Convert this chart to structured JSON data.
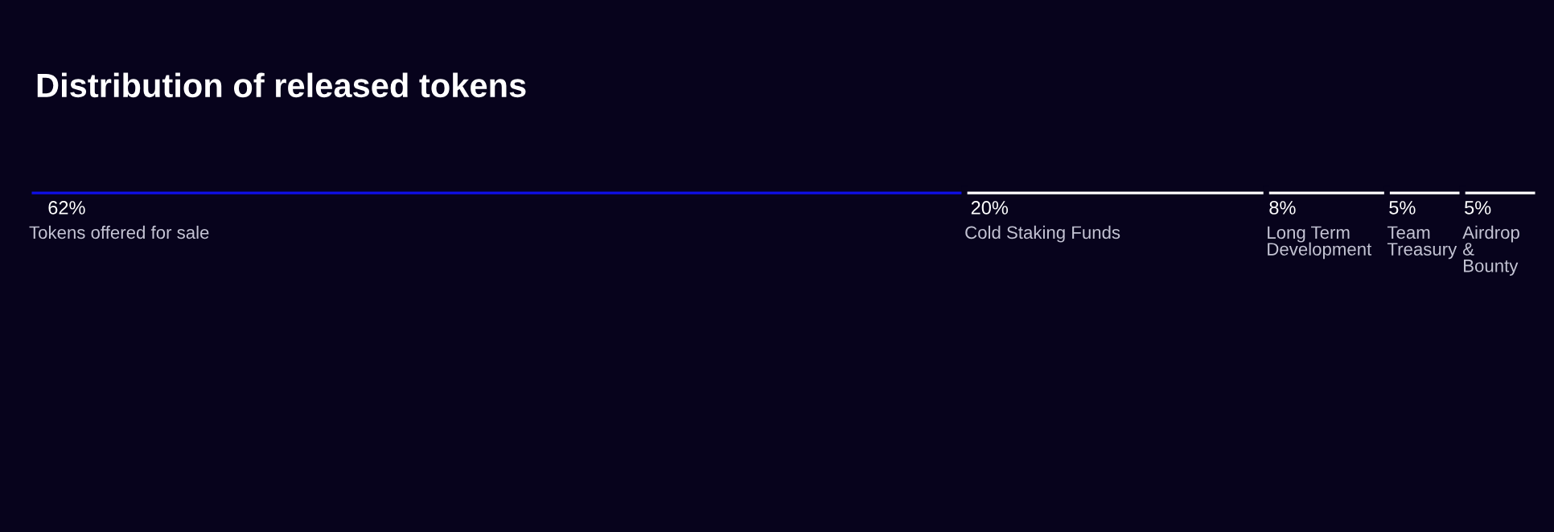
{
  "chart_data": {
    "type": "bar",
    "orientation": "horizontal",
    "stacked": true,
    "title": "Distribution of released tokens",
    "categories": [
      null
    ],
    "legend": false,
    "series": [
      {
        "name": "Tokens offered for sale",
        "color": "#0f0fe6",
        "values": [
          62
        ],
        "value_labels": [
          "62%"
        ]
      },
      {
        "name": "Cold Staking Funds",
        "color": "#ffffff",
        "values": [
          20
        ],
        "value_labels": [
          "20%"
        ]
      },
      {
        "name": "Long Term\nDevelopment",
        "color": "#ffffff",
        "values": [
          8
        ],
        "value_labels": [
          "8%"
        ]
      },
      {
        "name": "Team\nTreasury",
        "color": "#ffffff",
        "values": [
          5
        ],
        "value_labels": [
          "5%"
        ]
      },
      {
        "name": "Airdrop\n&\nBounty",
        "color": "#ffffff",
        "values": [
          5
        ],
        "value_labels": [
          "5%"
        ]
      }
    ]
  }
}
